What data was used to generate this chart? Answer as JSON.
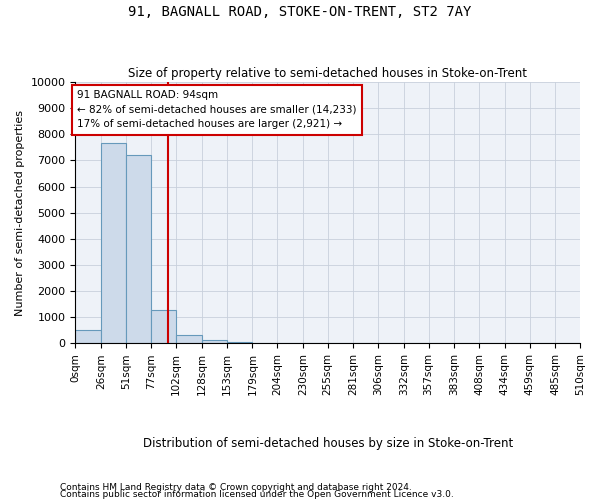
{
  "title": "91, BAGNALL ROAD, STOKE-ON-TRENT, ST2 7AY",
  "subtitle": "Size of property relative to semi-detached houses in Stoke-on-Trent",
  "xlabel": "Distribution of semi-detached houses by size in Stoke-on-Trent",
  "ylabel": "Number of semi-detached properties",
  "footnote1": "Contains HM Land Registry data © Crown copyright and database right 2024.",
  "footnote2": "Contains public sector information licensed under the Open Government Licence v3.0.",
  "bar_color": "#cddaea",
  "bar_edge_color": "#6699bb",
  "vline_color": "#cc0000",
  "vline_x": 94,
  "annotation_line1": "91 BAGNALL ROAD: 94sqm",
  "annotation_line2": "← 82% of semi-detached houses are smaller (14,233)",
  "annotation_line3": "17% of semi-detached houses are larger (2,921) →",
  "annotation_box_color": "#ffffff",
  "annotation_box_edge_color": "#cc0000",
  "bin_edges": [
    0,
    26,
    51,
    77,
    102,
    128,
    153,
    179,
    204,
    230,
    255,
    281,
    306,
    332,
    357,
    383,
    408,
    434,
    459,
    485,
    510
  ],
  "bin_counts": [
    500,
    7650,
    7200,
    1280,
    310,
    130,
    65,
    20,
    0,
    0,
    0,
    0,
    0,
    0,
    0,
    0,
    0,
    0,
    0,
    0
  ],
  "ylim": [
    0,
    10000
  ],
  "yticks": [
    0,
    1000,
    2000,
    3000,
    4000,
    5000,
    6000,
    7000,
    8000,
    9000,
    10000
  ],
  "background_color": "#ffffff",
  "grid_color": "#c8d0dc",
  "grid_bg_color": "#eef2f8"
}
